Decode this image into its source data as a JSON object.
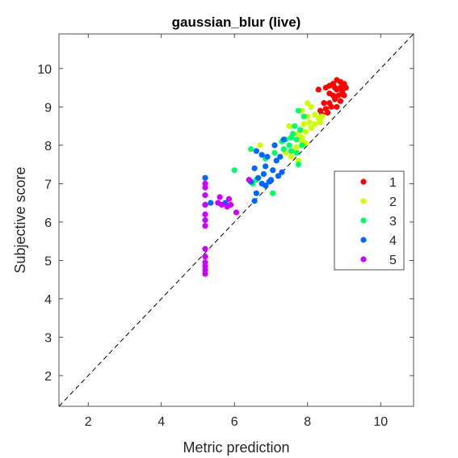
{
  "chart_data": {
    "type": "scatter",
    "title": "gaussian_blur (live)",
    "xlabel": "Metric prediction",
    "ylabel": "Subjective score",
    "xlim": [
      1.2,
      10.9
    ],
    "ylim": [
      1.2,
      10.9
    ],
    "xticks": [
      2,
      4,
      6,
      8,
      10
    ],
    "yticks": [
      2,
      3,
      4,
      5,
      6,
      7,
      8,
      9,
      10
    ],
    "grid": false,
    "legend_position": "right",
    "reference_line": {
      "style": "dashed",
      "from": [
        1.2,
        1.2
      ],
      "to": [
        10.9,
        10.9
      ]
    },
    "series": [
      {
        "name": "1",
        "color": "#ff0000",
        "points": [
          [
            8.8,
            9.7
          ],
          [
            8.9,
            9.65
          ],
          [
            9.0,
            9.6
          ],
          [
            8.7,
            9.6
          ],
          [
            8.6,
            9.55
          ],
          [
            8.5,
            9.5
          ],
          [
            8.75,
            9.5
          ],
          [
            8.9,
            9.5
          ],
          [
            9.05,
            9.5
          ],
          [
            8.8,
            9.45
          ],
          [
            8.3,
            9.45
          ],
          [
            8.95,
            9.4
          ],
          [
            8.6,
            9.35
          ],
          [
            8.7,
            9.3
          ],
          [
            8.85,
            9.3
          ],
          [
            9.0,
            9.3
          ],
          [
            8.75,
            9.2
          ],
          [
            8.9,
            9.15
          ],
          [
            8.6,
            9.1
          ],
          [
            8.45,
            9.1
          ],
          [
            8.65,
            9.0
          ],
          [
            8.8,
            9.0
          ],
          [
            8.5,
            8.95
          ],
          [
            8.35,
            8.9
          ],
          [
            8.55,
            8.85
          ],
          [
            8.4,
            8.8
          ]
        ]
      },
      {
        "name": "2",
        "color": "#ccff00",
        "points": [
          [
            8.0,
            9.1
          ],
          [
            8.1,
            9.0
          ],
          [
            7.85,
            8.9
          ],
          [
            8.2,
            8.8
          ],
          [
            8.0,
            8.75
          ],
          [
            8.3,
            8.7
          ],
          [
            8.4,
            8.75
          ],
          [
            8.05,
            8.6
          ],
          [
            7.9,
            8.55
          ],
          [
            8.2,
            8.55
          ],
          [
            8.35,
            8.6
          ],
          [
            8.1,
            8.45
          ],
          [
            7.95,
            8.35
          ],
          [
            7.5,
            8.5
          ],
          [
            7.75,
            8.3
          ],
          [
            7.85,
            8.2
          ],
          [
            7.95,
            8.05
          ],
          [
            7.7,
            7.95
          ],
          [
            7.6,
            7.85
          ],
          [
            7.4,
            7.8
          ],
          [
            6.7,
            8.0
          ],
          [
            7.85,
            8.1
          ],
          [
            7.55,
            7.7
          ],
          [
            7.75,
            7.6
          ]
        ]
      },
      {
        "name": "3",
        "color": "#00ff66",
        "points": [
          [
            7.75,
            8.9
          ],
          [
            7.9,
            8.75
          ],
          [
            7.65,
            8.5
          ],
          [
            7.8,
            8.4
          ],
          [
            7.6,
            8.3
          ],
          [
            7.55,
            8.2
          ],
          [
            7.7,
            8.15
          ],
          [
            7.4,
            8.15
          ],
          [
            7.3,
            8.1
          ],
          [
            7.5,
            8.0
          ],
          [
            7.85,
            8.0
          ],
          [
            7.35,
            7.9
          ],
          [
            7.55,
            7.85
          ],
          [
            7.7,
            7.8
          ],
          [
            7.1,
            7.8
          ],
          [
            6.85,
            7.65
          ],
          [
            7.75,
            7.5
          ],
          [
            6.45,
            7.9
          ],
          [
            6.0,
            7.35
          ],
          [
            7.05,
            6.75
          ],
          [
            6.5,
            7.0
          ],
          [
            6.6,
            7.1
          ]
        ]
      },
      {
        "name": "4",
        "color": "#0066ff",
        "points": [
          [
            7.35,
            8.15
          ],
          [
            7.1,
            8.0
          ],
          [
            6.6,
            7.85
          ],
          [
            6.75,
            7.75
          ],
          [
            6.9,
            7.7
          ],
          [
            7.25,
            7.7
          ],
          [
            7.15,
            7.6
          ],
          [
            6.85,
            7.45
          ],
          [
            6.55,
            7.4
          ],
          [
            7.05,
            7.35
          ],
          [
            7.3,
            7.3
          ],
          [
            6.8,
            7.25
          ],
          [
            7.2,
            7.2
          ],
          [
            6.65,
            7.15
          ],
          [
            7.0,
            7.1
          ],
          [
            6.95,
            7.05
          ],
          [
            6.75,
            7.0
          ],
          [
            6.6,
            6.75
          ],
          [
            6.85,
            6.95
          ],
          [
            6.45,
            7.05
          ],
          [
            5.2,
            7.15
          ],
          [
            5.2,
            6.45
          ],
          [
            6.55,
            6.55
          ],
          [
            5.35,
            6.5
          ],
          [
            5.75,
            6.5
          ]
        ]
      },
      {
        "name": "5",
        "color": "#cc00ff",
        "points": [
          [
            5.2,
            7.0
          ],
          [
            5.2,
            6.9
          ],
          [
            5.2,
            6.7
          ],
          [
            5.2,
            6.45
          ],
          [
            5.2,
            6.2
          ],
          [
            5.2,
            6.05
          ],
          [
            5.2,
            5.9
          ],
          [
            5.2,
            5.3
          ],
          [
            5.2,
            5.1
          ],
          [
            5.2,
            4.95
          ],
          [
            5.2,
            4.85
          ],
          [
            5.2,
            4.75
          ],
          [
            5.2,
            4.65
          ],
          [
            5.6,
            6.65
          ],
          [
            5.85,
            6.6
          ],
          [
            5.55,
            6.5
          ],
          [
            5.65,
            6.45
          ],
          [
            5.8,
            6.4
          ],
          [
            5.9,
            6.45
          ],
          [
            6.05,
            6.25
          ],
          [
            6.4,
            7.1
          ]
        ]
      }
    ]
  }
}
